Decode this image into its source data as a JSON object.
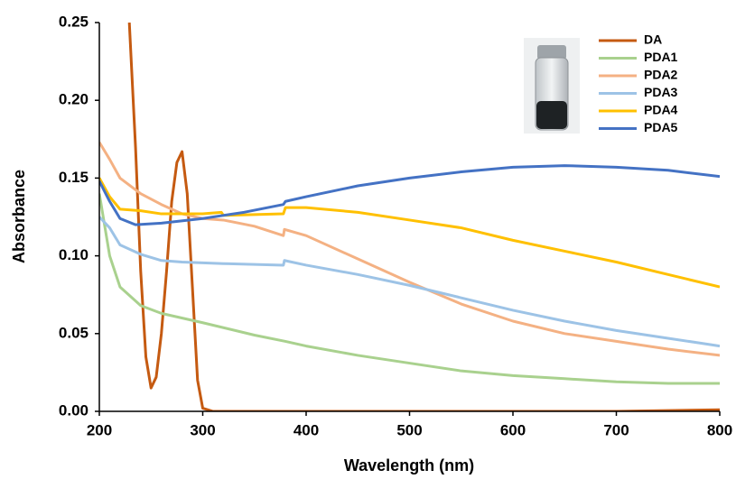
{
  "chart_data": {
    "type": "line",
    "x_label": "Wavelength (nm)",
    "y_label": "Absorbance",
    "xlim": [
      200,
      800
    ],
    "xticks": [
      200,
      300,
      400,
      500,
      600,
      700,
      800
    ],
    "ylim": [
      0,
      0.25
    ],
    "yticks": [
      {
        "value": 0,
        "label": "0.00"
      },
      {
        "value": 0.05,
        "label": "0.05"
      },
      {
        "value": 0.1,
        "label": "0.10"
      },
      {
        "value": 0.15,
        "label": "0.15"
      },
      {
        "value": 0.2,
        "label": "0.20"
      },
      {
        "value": 0.25,
        "label": "0.25"
      }
    ],
    "grid": false,
    "legend": "upper right",
    "series": [
      {
        "name": "DA",
        "color": "#c55a11",
        "x": [
          229,
          235,
          240,
          245,
          250,
          255,
          260,
          265,
          270,
          275,
          280,
          285,
          290,
          295,
          300,
          310,
          400,
          500,
          600,
          700,
          800
        ],
        "values": [
          0.25,
          0.17,
          0.09,
          0.035,
          0.015,
          0.022,
          0.05,
          0.09,
          0.135,
          0.16,
          0.167,
          0.14,
          0.08,
          0.02,
          0.002,
          0,
          0,
          0,
          0,
          0,
          0.001
        ]
      },
      {
        "name": "PDA1",
        "color": "#a9d18e",
        "x": [
          200,
          210,
          220,
          240,
          260,
          300,
          350,
          380,
          400,
          450,
          500,
          550,
          600,
          650,
          700,
          750,
          800
        ],
        "values": [
          0.14,
          0.1,
          0.08,
          0.068,
          0.063,
          0.057,
          0.049,
          0.045,
          0.042,
          0.036,
          0.031,
          0.026,
          0.023,
          0.021,
          0.019,
          0.018,
          0.018
        ]
      },
      {
        "name": "PDA2",
        "color": "#f4b183",
        "x": [
          200,
          210,
          220,
          240,
          260,
          280,
          300,
          320,
          350,
          378,
          379,
          400,
          450,
          500,
          550,
          600,
          650,
          700,
          750,
          800
        ],
        "values": [
          0.173,
          0.162,
          0.15,
          0.14,
          0.133,
          0.127,
          0.124,
          0.123,
          0.119,
          0.113,
          0.117,
          0.113,
          0.098,
          0.083,
          0.069,
          0.058,
          0.05,
          0.045,
          0.04,
          0.036
        ]
      },
      {
        "name": "PDA3",
        "color": "#9dc3e6",
        "x": [
          200,
          210,
          220,
          240,
          260,
          280,
          320,
          378,
          379,
          400,
          450,
          500,
          550,
          600,
          650,
          700,
          750,
          800
        ],
        "values": [
          0.125,
          0.118,
          0.107,
          0.101,
          0.097,
          0.096,
          0.095,
          0.094,
          0.097,
          0.094,
          0.088,
          0.081,
          0.073,
          0.065,
          0.058,
          0.052,
          0.047,
          0.042
        ]
      },
      {
        "name": "PDA4",
        "color": "#ffc000",
        "x": [
          200,
          210,
          220,
          240,
          260,
          300,
          318,
          320,
          378,
          380,
          400,
          450,
          500,
          550,
          600,
          650,
          700,
          750,
          800
        ],
        "values": [
          0.15,
          0.138,
          0.13,
          0.129,
          0.127,
          0.127,
          0.128,
          0.126,
          0.127,
          0.131,
          0.131,
          0.128,
          0.123,
          0.118,
          0.11,
          0.103,
          0.096,
          0.088,
          0.08
        ]
      },
      {
        "name": "PDA5",
        "color": "#4472c4",
        "x": [
          200,
          210,
          220,
          235,
          260,
          300,
          340,
          378,
          380,
          400,
          450,
          500,
          550,
          600,
          650,
          700,
          750,
          800
        ],
        "values": [
          0.148,
          0.135,
          0.124,
          0.12,
          0.121,
          0.124,
          0.128,
          0.133,
          0.135,
          0.138,
          0.145,
          0.15,
          0.154,
          0.157,
          0.158,
          0.157,
          0.155,
          0.151
        ]
      }
    ]
  }
}
